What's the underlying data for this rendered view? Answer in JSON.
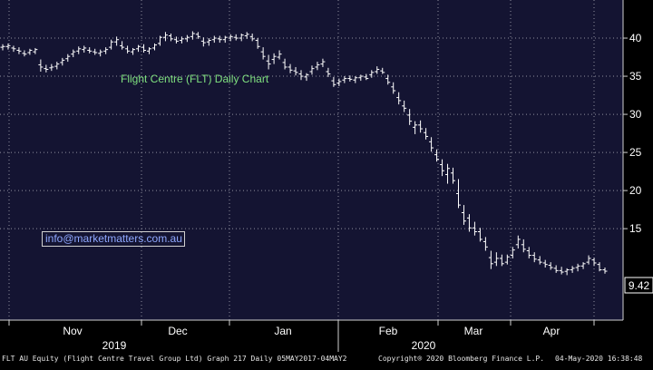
{
  "chart_data": {
    "type": "ohlc",
    "title": "Flight Centre (FLT) Daily Chart",
    "annotation": "info@marketmatters.com.au",
    "last_price_label": "9.42",
    "ylim": [
      3,
      45
    ],
    "yticks": [
      15,
      20,
      25,
      30,
      35,
      40
    ],
    "month_labels": [
      "Nov",
      "Dec",
      "Jan",
      "Feb",
      "Mar",
      "Apr"
    ],
    "year_labels": [
      "2019",
      "2020"
    ],
    "grid": true,
    "series": [
      {
        "values": [
          [
            38.8,
            39.2,
            38.4,
            38.9
          ],
          [
            38.9,
            39.3,
            38.5,
            39.0
          ],
          [
            38.7,
            39.0,
            38.2,
            38.6
          ],
          [
            38.4,
            38.8,
            37.9,
            38.3
          ],
          [
            38.0,
            38.4,
            37.6,
            37.9
          ],
          [
            38.1,
            38.6,
            37.8,
            38.4
          ],
          [
            38.2,
            38.7,
            37.9,
            38.5
          ],
          [
            36.5,
            37.2,
            35.6,
            36.2
          ],
          [
            36.0,
            36.5,
            35.5,
            35.9
          ],
          [
            36.1,
            36.6,
            35.7,
            36.2
          ],
          [
            36.3,
            36.9,
            35.9,
            36.6
          ],
          [
            36.8,
            37.4,
            36.4,
            37.1
          ],
          [
            37.3,
            37.9,
            36.9,
            37.6
          ],
          [
            37.9,
            38.5,
            37.5,
            38.2
          ],
          [
            38.3,
            38.9,
            37.9,
            38.6
          ],
          [
            38.5,
            39.0,
            38.1,
            38.7
          ],
          [
            38.4,
            38.8,
            38.0,
            38.3
          ],
          [
            38.2,
            38.6,
            37.8,
            38.1
          ],
          [
            38.0,
            38.5,
            37.6,
            38.2
          ],
          [
            38.3,
            38.8,
            37.9,
            38.5
          ],
          [
            38.8,
            39.8,
            38.5,
            39.5
          ],
          [
            39.5,
            40.2,
            39.0,
            39.8
          ],
          [
            39.0,
            39.6,
            38.5,
            38.8
          ],
          [
            38.6,
            39.0,
            38.0,
            38.3
          ],
          [
            38.2,
            38.7,
            37.8,
            38.5
          ],
          [
            38.6,
            39.1,
            38.2,
            38.9
          ],
          [
            38.8,
            39.2,
            38.1,
            38.4
          ],
          [
            38.3,
            38.8,
            37.9,
            38.6
          ],
          [
            38.7,
            39.3,
            38.4,
            39.1
          ],
          [
            39.3,
            40.3,
            39.0,
            40.1
          ],
          [
            40.1,
            40.8,
            39.6,
            40.4
          ],
          [
            40.3,
            40.6,
            39.6,
            39.9
          ],
          [
            39.8,
            40.2,
            39.3,
            39.6
          ],
          [
            39.7,
            40.2,
            39.3,
            39.9
          ],
          [
            39.9,
            40.4,
            39.5,
            40.1
          ],
          [
            40.2,
            40.9,
            39.8,
            40.6
          ],
          [
            40.5,
            40.8,
            39.9,
            40.2
          ],
          [
            39.6,
            40.1,
            38.9,
            39.4
          ],
          [
            39.5,
            40.0,
            39.0,
            39.7
          ],
          [
            39.8,
            40.3,
            39.4,
            40.0
          ],
          [
            39.9,
            40.3,
            39.4,
            39.8
          ],
          [
            39.8,
            40.3,
            39.4,
            40.1
          ],
          [
            40.0,
            40.5,
            39.6,
            40.2
          ],
          [
            40.1,
            40.5,
            39.7,
            40.0
          ],
          [
            40.0,
            40.6,
            39.6,
            40.4
          ],
          [
            40.3,
            40.8,
            39.9,
            40.5
          ],
          [
            40.2,
            40.6,
            39.6,
            39.9
          ],
          [
            39.7,
            40.0,
            38.6,
            38.9
          ],
          [
            38.2,
            38.8,
            37.2,
            37.6
          ],
          [
            37.0,
            37.8,
            35.9,
            36.6
          ],
          [
            37.2,
            38.0,
            36.6,
            37.6
          ],
          [
            37.5,
            38.4,
            37.2,
            37.9
          ],
          [
            36.8,
            37.3,
            35.9,
            36.2
          ],
          [
            36.2,
            36.6,
            35.4,
            35.8
          ],
          [
            35.7,
            36.2,
            35.1,
            35.5
          ],
          [
            35.3,
            35.8,
            34.5,
            35.0
          ],
          [
            34.9,
            35.4,
            34.4,
            35.2
          ],
          [
            35.6,
            36.4,
            35.2,
            36.0
          ],
          [
            36.2,
            36.9,
            35.8,
            36.5
          ],
          [
            36.6,
            37.3,
            36.2,
            36.9
          ],
          [
            35.6,
            36.1,
            34.9,
            35.3
          ],
          [
            34.4,
            34.9,
            33.6,
            33.9
          ],
          [
            34.1,
            34.7,
            33.7,
            34.3
          ],
          [
            34.5,
            35.0,
            34.1,
            34.7
          ],
          [
            34.7,
            35.1,
            34.3,
            34.6
          ],
          [
            34.5,
            35.0,
            34.1,
            34.8
          ],
          [
            34.8,
            35.2,
            34.4,
            35.0
          ],
          [
            34.9,
            35.3,
            34.5,
            34.7
          ],
          [
            35.2,
            35.8,
            34.8,
            35.5
          ],
          [
            35.6,
            36.3,
            35.3,
            35.9
          ],
          [
            35.7,
            36.1,
            35.3,
            35.5
          ],
          [
            34.7,
            35.2,
            33.9,
            34.2
          ],
          [
            33.6,
            34.2,
            32.7,
            33.1
          ],
          [
            32.2,
            32.9,
            31.3,
            31.8
          ],
          [
            31.1,
            31.8,
            30.3,
            30.8
          ],
          [
            29.9,
            30.7,
            28.6,
            29.1
          ],
          [
            28.3,
            29.1,
            27.4,
            28.6
          ],
          [
            28.6,
            29.2,
            27.6,
            28.1
          ],
          [
            27.6,
            28.2,
            26.7,
            27.1
          ],
          [
            26.4,
            27.0,
            25.1,
            25.6
          ],
          [
            24.7,
            25.4,
            23.8,
            24.1
          ],
          [
            23.4,
            24.1,
            21.9,
            22.6
          ],
          [
            22.1,
            23.5,
            20.9,
            22.9
          ],
          [
            22.3,
            23.0,
            20.9,
            21.3
          ],
          [
            19.6,
            21.5,
            17.7,
            18.1
          ],
          [
            17.1,
            18.1,
            15.5,
            16.0
          ],
          [
            16.4,
            16.9,
            14.6,
            15.1
          ],
          [
            15.1,
            15.9,
            14.1,
            14.6
          ],
          [
            14.6,
            15.1,
            13.3,
            13.6
          ],
          [
            13.3,
            13.9,
            12.1,
            12.6
          ],
          [
            11.2,
            12.1,
            9.7,
            10.4
          ],
          [
            10.6,
            11.9,
            10.1,
            11.1
          ],
          [
            11.1,
            11.6,
            10.1,
            10.4
          ],
          [
            10.6,
            11.6,
            10.3,
            11.3
          ],
          [
            11.5,
            12.6,
            11.1,
            12.2
          ],
          [
            12.9,
            14.1,
            12.4,
            13.6
          ],
          [
            12.9,
            13.6,
            11.9,
            12.3
          ],
          [
            12.1,
            12.6,
            11.1,
            11.5
          ],
          [
            11.5,
            11.9,
            10.6,
            11.0
          ],
          [
            10.9,
            11.4,
            10.3,
            10.6
          ],
          [
            10.5,
            10.9,
            9.9,
            10.3
          ],
          [
            10.2,
            10.6,
            9.6,
            9.9
          ],
          [
            9.8,
            10.2,
            9.2,
            9.5
          ],
          [
            9.5,
            10.0,
            9.0,
            9.3
          ],
          [
            9.4,
            9.8,
            8.9,
            9.6
          ],
          [
            9.6,
            10.1,
            9.2,
            9.8
          ],
          [
            9.9,
            10.4,
            9.4,
            10.1
          ],
          [
            10.1,
            10.6,
            9.7,
            10.4
          ],
          [
            10.6,
            11.5,
            10.3,
            11.1
          ],
          [
            10.9,
            11.2,
            10.1,
            10.5
          ],
          [
            10.3,
            10.6,
            9.4,
            9.6
          ],
          [
            9.6,
            9.9,
            9.1,
            9.42
          ]
        ]
      }
    ]
  },
  "footer": {
    "left": "FLT AU Equity (Flight Centre Travel Group Ltd) Graph 217  Daily 05MAY2017-04MAY2",
    "center": "Copyright® 2020 Bloomberg Finance L.P.",
    "right": "04-May-2020 16:38:48"
  }
}
